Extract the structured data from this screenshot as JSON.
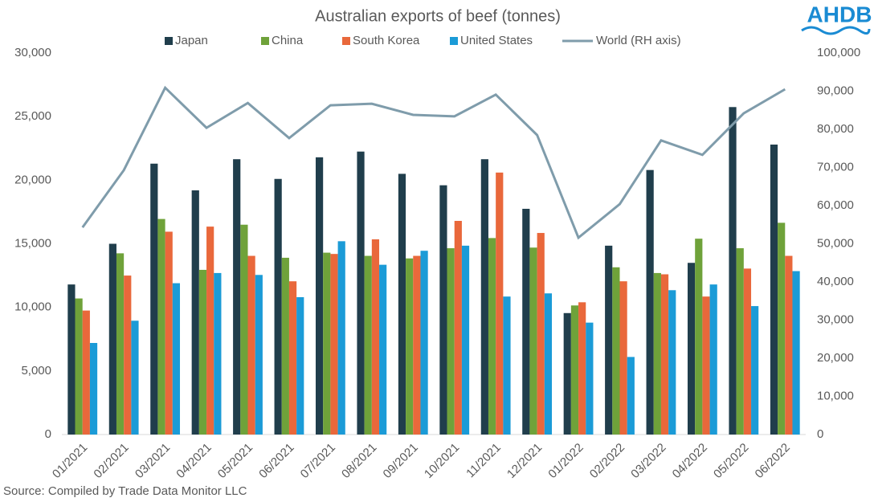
{
  "chart_data": {
    "type": "bar",
    "title": "Australian exports of beef (tonnes)",
    "source": "Source: Compiled by Trade Data Monitor LLC",
    "logo": "AHDB",
    "categories": [
      "01/2021",
      "02/2021",
      "03/2021",
      "04/2021",
      "05/2021",
      "06/2021",
      "07/2021",
      "08/2021",
      "09/2021",
      "10/2021",
      "11/2021",
      "12/2021",
      "01/2022",
      "02/2022",
      "03/2022",
      "04/2022",
      "05/2022",
      "06/2022"
    ],
    "series": [
      {
        "name": "Japan",
        "color": "#203e4c",
        "values": [
          11800,
          15000,
          21300,
          19200,
          21650,
          20100,
          21800,
          22250,
          20500,
          19600,
          21650,
          17750,
          9550,
          14850,
          20800,
          13500,
          25750,
          22800
        ]
      },
      {
        "name": "China",
        "color": "#6fa23a",
        "values": [
          10700,
          14250,
          16950,
          12950,
          16500,
          13900,
          14300,
          14050,
          13850,
          14650,
          15450,
          14700,
          10150,
          13150,
          12700,
          15400,
          14650,
          16650
        ]
      },
      {
        "name": "South Korea",
        "color": "#e9683b",
        "values": [
          9750,
          12500,
          15950,
          16350,
          14050,
          12050,
          14200,
          15350,
          14050,
          16800,
          20600,
          15850,
          10400,
          12050,
          12600,
          10850,
          13050,
          14050
        ]
      },
      {
        "name": "United States",
        "color": "#1b9bd7",
        "values": [
          7200,
          8950,
          11900,
          12700,
          12550,
          10800,
          15200,
          13350,
          14450,
          14850,
          10850,
          11100,
          8800,
          6100,
          11350,
          11800,
          10100,
          12850
        ]
      },
      {
        "name": "World (RH axis)",
        "color": "#7f9cab",
        "type": "line",
        "axis": "y2",
        "values": [
          54300,
          69300,
          90900,
          80400,
          86900,
          77700,
          86300,
          86700,
          83800,
          83400,
          89100,
          78500,
          51600,
          60400,
          77100,
          73300,
          84200,
          90500
        ]
      }
    ],
    "ylim": [
      0,
      30000
    ],
    "yticks": [
      0,
      {
        "value": 5000,
        "label": "5,000"
      },
      {
        "value": 10000,
        "label": "10,000"
      },
      {
        "value": 15000,
        "label": "15,000"
      },
      {
        "value": 20000,
        "label": "20,000"
      },
      {
        "value": 25000,
        "label": "25,000"
      },
      {
        "value": 30000,
        "label": "30,000"
      }
    ],
    "y2lim": [
      0,
      100000
    ],
    "y2ticks": [
      0,
      {
        "value": 10000,
        "label": "10,000"
      },
      {
        "value": 20000,
        "label": "20,000"
      },
      {
        "value": 30000,
        "label": "30,000"
      },
      {
        "value": 40000,
        "label": "40,000"
      },
      {
        "value": 50000,
        "label": "50,000"
      },
      {
        "value": 60000,
        "label": "60,000"
      },
      {
        "value": 70000,
        "label": "70,000"
      },
      {
        "value": 80000,
        "label": "80,000"
      },
      {
        "value": 90000,
        "label": "90,000"
      },
      {
        "value": 100000,
        "label": "100,000"
      }
    ],
    "legend": "top"
  }
}
